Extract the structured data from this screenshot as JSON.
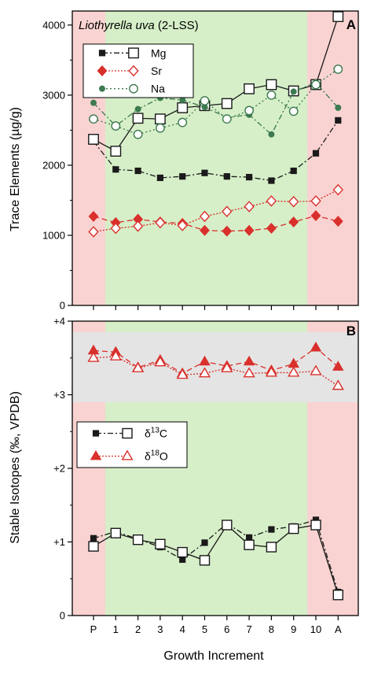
{
  "chart_data": [
    {
      "panel": "A",
      "type": "line",
      "title": "Liothyrella uva (2-LSS)",
      "title_species": "Liothyrella uva",
      "title_suffix": " (2-LSS)",
      "panel_label": "A",
      "ylabel": "Trace Elements (µg/g)",
      "xlabel": "",
      "ylim": [
        0,
        4200
      ],
      "yticks": [
        0,
        1000,
        2000,
        3000,
        4000
      ],
      "ytick_labels": [
        "0",
        "1000",
        "2000",
        "3000",
        "4000"
      ],
      "categories": [
        "P",
        "1",
        "2",
        "3",
        "4",
        "5",
        "6",
        "7",
        "8",
        "9",
        "10",
        "A"
      ],
      "legend_position": "top-left",
      "series": [
        {
          "name": "Mg",
          "type": "paired",
          "color": "#1a1a1a",
          "filled": [
            2340,
            1940,
            1920,
            1820,
            1840,
            1890,
            1840,
            1830,
            1780,
            1920,
            2170,
            2640
          ],
          "open": [
            2370,
            2200,
            2670,
            2660,
            2820,
            2850,
            2880,
            3090,
            3150,
            3060,
            3150,
            4120
          ]
        },
        {
          "name": "Sr",
          "type": "paired",
          "color": "#d9302c",
          "filled": [
            1270,
            1180,
            1230,
            1190,
            1170,
            1070,
            1060,
            1070,
            1100,
            1190,
            1280,
            1200
          ],
          "open": [
            1050,
            1100,
            1130,
            1180,
            1140,
            1270,
            1340,
            1410,
            1490,
            1480,
            1490,
            1650
          ]
        },
        {
          "name": "Na",
          "type": "paired",
          "color": "#3d7a50",
          "filled": [
            2890,
            2560,
            2800,
            2960,
            2930,
            2830,
            2680,
            2720,
            2440,
            3050,
            3180,
            2820
          ],
          "open": [
            2660,
            2560,
            2440,
            2530,
            2610,
            2920,
            2660,
            2780,
            3000,
            2770,
            3150,
            3370
          ]
        }
      ]
    },
    {
      "panel": "B",
      "type": "line",
      "title": "",
      "panel_label": "B",
      "ylabel": "Stable Isotopes (‰, VPDB)",
      "xlabel": "Growth Increment",
      "ylim": [
        0,
        4
      ],
      "yticks": [
        0,
        1,
        2,
        3,
        4
      ],
      "ytick_labels": [
        "0",
        "+1",
        "+2",
        "+3",
        "+4"
      ],
      "categories": [
        "P",
        "1",
        "2",
        "3",
        "4",
        "5",
        "6",
        "7",
        "8",
        "9",
        "10",
        "A"
      ],
      "legend_position": "middle-left",
      "series": [
        {
          "name": "δ13C",
          "name_base": "δ",
          "name_sup": "13",
          "name_tail": "C",
          "type": "paired",
          "color": "#1a1a1a",
          "filled": [
            1.05,
            1.14,
            1.04,
            0.93,
            0.76,
            0.99,
            1.25,
            1.06,
            1.17,
            1.21,
            1.3,
            0.32
          ],
          "open": [
            0.94,
            1.12,
            1.03,
            0.97,
            0.86,
            0.75,
            1.23,
            0.96,
            0.93,
            1.18,
            1.23,
            0.28
          ]
        },
        {
          "name": "δ18O",
          "name_base": "δ",
          "name_sup": "18",
          "name_tail": "O",
          "type": "paired",
          "color": "#d9302c",
          "filled": [
            3.6,
            3.58,
            3.37,
            3.47,
            3.29,
            3.45,
            3.39,
            3.45,
            3.33,
            3.42,
            3.64,
            3.38
          ],
          "open": [
            3.5,
            3.52,
            3.36,
            3.44,
            3.27,
            3.29,
            3.36,
            3.29,
            3.3,
            3.3,
            3.32,
            3.12
          ]
        }
      ]
    }
  ],
  "colors": {
    "pink_zone": "#f9d3d1",
    "green_zone": "#d6efc8",
    "gray_band": "#e4e4e4"
  }
}
